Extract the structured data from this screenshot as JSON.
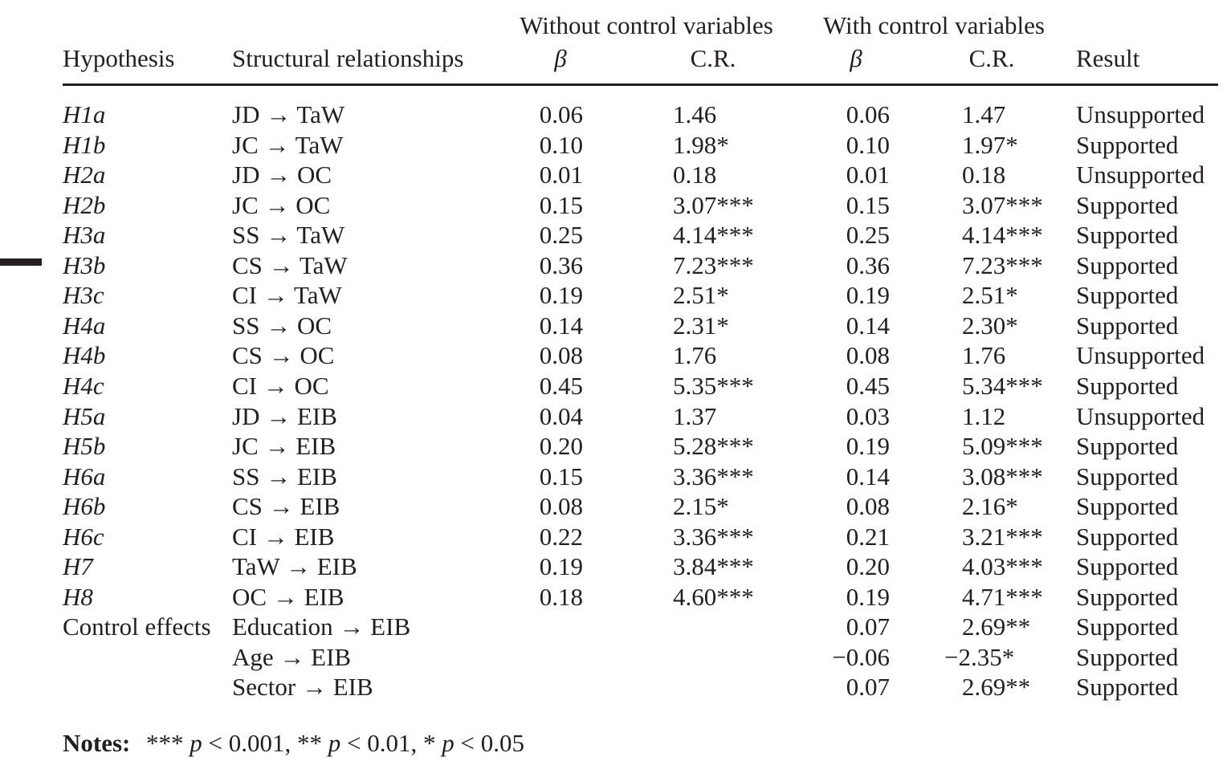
{
  "table": {
    "group_headers": [
      "Without control variables",
      "With control variables"
    ],
    "columns": [
      "Hypothesis",
      "Structural relationships",
      "β",
      "C.R.",
      "β",
      "C.R.",
      "Result"
    ],
    "rows": [
      {
        "hypothesis": "H1a",
        "relationship": "JD → TaW",
        "without": {
          "beta": "0.06",
          "cr": "1.46"
        },
        "with": {
          "beta": "0.06",
          "cr": "1.47"
        },
        "result": "Unsupported"
      },
      {
        "hypothesis": "H1b",
        "relationship": "JC → TaW",
        "without": {
          "beta": "0.10",
          "cr": "1.98*"
        },
        "with": {
          "beta": "0.10",
          "cr": "1.97*"
        },
        "result": "Supported"
      },
      {
        "hypothesis": "H2a",
        "relationship": "JD → OC",
        "without": {
          "beta": "0.01",
          "cr": "0.18"
        },
        "with": {
          "beta": "0.01",
          "cr": "0.18"
        },
        "result": "Unsupported"
      },
      {
        "hypothesis": "H2b",
        "relationship": "JC → OC",
        "without": {
          "beta": "0.15",
          "cr": "3.07***"
        },
        "with": {
          "beta": "0.15",
          "cr": "3.07***"
        },
        "result": "Supported"
      },
      {
        "hypothesis": "H3a",
        "relationship": "SS → TaW",
        "without": {
          "beta": "0.25",
          "cr": "4.14***"
        },
        "with": {
          "beta": "0.25",
          "cr": "4.14***"
        },
        "result": "Supported"
      },
      {
        "hypothesis": "H3b",
        "relationship": "CS → TaW",
        "without": {
          "beta": "0.36",
          "cr": "7.23***"
        },
        "with": {
          "beta": "0.36",
          "cr": "7.23***"
        },
        "result": "Supported"
      },
      {
        "hypothesis": "H3c",
        "relationship": "CI → TaW",
        "without": {
          "beta": "0.19",
          "cr": "2.51*"
        },
        "with": {
          "beta": "0.19",
          "cr": "2.51*"
        },
        "result": "Supported"
      },
      {
        "hypothesis": "H4a",
        "relationship": "SS → OC",
        "without": {
          "beta": "0.14",
          "cr": "2.31*"
        },
        "with": {
          "beta": "0.14",
          "cr": "2.30*"
        },
        "result": "Supported"
      },
      {
        "hypothesis": "H4b",
        "relationship": "CS → OC",
        "without": {
          "beta": "0.08",
          "cr": "1.76"
        },
        "with": {
          "beta": "0.08",
          "cr": "1.76"
        },
        "result": "Unsupported"
      },
      {
        "hypothesis": "H4c",
        "relationship": "CI → OC",
        "without": {
          "beta": "0.45",
          "cr": "5.35***"
        },
        "with": {
          "beta": "0.45",
          "cr": "5.34***"
        },
        "result": "Supported"
      },
      {
        "hypothesis": "H5a",
        "relationship": "JD → EIB",
        "without": {
          "beta": "0.04",
          "cr": "1.37"
        },
        "with": {
          "beta": "0.03",
          "cr": "1.12"
        },
        "result": "Unsupported"
      },
      {
        "hypothesis": "H5b",
        "relationship": "JC → EIB",
        "without": {
          "beta": "0.20",
          "cr": "5.28***"
        },
        "with": {
          "beta": "0.19",
          "cr": "5.09***"
        },
        "result": "Supported"
      },
      {
        "hypothesis": "H6a",
        "relationship": "SS → EIB",
        "without": {
          "beta": "0.15",
          "cr": "3.36***"
        },
        "with": {
          "beta": "0.14",
          "cr": "3.08***"
        },
        "result": "Supported"
      },
      {
        "hypothesis": "H6b",
        "relationship": "CS → EIB",
        "without": {
          "beta": "0.08",
          "cr": "2.15*"
        },
        "with": {
          "beta": "0.08",
          "cr": "2.16*"
        },
        "result": "Supported"
      },
      {
        "hypothesis": "H6c",
        "relationship": "CI → EIB",
        "without": {
          "beta": "0.22",
          "cr": "3.36***"
        },
        "with": {
          "beta": "0.21",
          "cr": "3.21***"
        },
        "result": "Supported"
      },
      {
        "hypothesis": "H7",
        "relationship": "TaW → EIB",
        "without": {
          "beta": "0.19",
          "cr": "3.84***"
        },
        "with": {
          "beta": "0.20",
          "cr": "4.03***"
        },
        "result": "Supported"
      },
      {
        "hypothesis": "H8",
        "relationship": "OC → EIB",
        "without": {
          "beta": "0.18",
          "cr": "4.60***"
        },
        "with": {
          "beta": "0.19",
          "cr": "4.71***"
        },
        "result": "Supported"
      },
      {
        "hypothesis": "Control effects",
        "relationship": "Education → EIB",
        "with": {
          "beta": "0.07",
          "cr": "2.69**"
        },
        "result": "Supported"
      },
      {
        "relationship": "Age → EIB",
        "with": {
          "beta": "−0.06",
          "cr": "−2.35*"
        },
        "result": "Supported"
      },
      {
        "relationship": "Sector → EIB",
        "with": {
          "beta": "0.07",
          "cr": "2.69**"
        },
        "result": "Supported"
      }
    ],
    "notes": {
      "label": "Notes:",
      "text": "*** p < 0.001, ** p < 0.01, * p < 0.05"
    }
  }
}
